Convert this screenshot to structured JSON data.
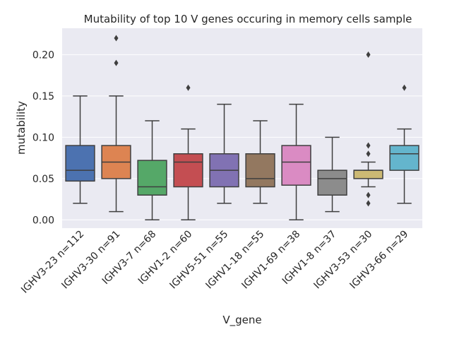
{
  "chart_data": {
    "type": "box",
    "title": "Mutability of top 10 V genes occuring in memory cells sample",
    "xlabel": "V_gene",
    "ylabel": "mutability",
    "ylim": [
      -0.01,
      0.232
    ],
    "yticks": [
      0.0,
      0.05,
      0.1,
      0.15,
      0.2
    ],
    "ytick_labels": [
      "0.00",
      "0.05",
      "0.10",
      "0.15",
      "0.20"
    ],
    "grid": true,
    "background": "#eaeaf2",
    "grid_color": "#ffffff",
    "line_color": "#3f3f3f",
    "categories": [
      "IGHV3-23 n=112",
      "IGHV3-30 n=91",
      "IGHV3-7 n=68",
      "IGHV1-2 n=60",
      "IGHV5-51 n=55",
      "IGHV1-18 n=55",
      "IGHV1-69 n=38",
      "IGHV1-8 n=37",
      "IGHV3-53 n=30",
      "IGHV3-66 n=29"
    ],
    "boxes": [
      {
        "whisker_low": 0.02,
        "q1": 0.047,
        "median": 0.06,
        "q3": 0.09,
        "whisker_high": 0.15,
        "outliers": [],
        "color": "#4c72b0"
      },
      {
        "whisker_low": 0.01,
        "q1": 0.05,
        "median": 0.07,
        "q3": 0.09,
        "whisker_high": 0.15,
        "outliers": [
          0.19,
          0.22
        ],
        "color": "#dd8452"
      },
      {
        "whisker_low": 0.0,
        "q1": 0.03,
        "median": 0.04,
        "q3": 0.072,
        "whisker_high": 0.12,
        "outliers": [],
        "color": "#55a868"
      },
      {
        "whisker_low": 0.0,
        "q1": 0.04,
        "median": 0.07,
        "q3": 0.08,
        "whisker_high": 0.11,
        "outliers": [
          0.16
        ],
        "color": "#c44e52"
      },
      {
        "whisker_low": 0.02,
        "q1": 0.04,
        "median": 0.06,
        "q3": 0.08,
        "whisker_high": 0.14,
        "outliers": [],
        "color": "#8172b3"
      },
      {
        "whisker_low": 0.02,
        "q1": 0.04,
        "median": 0.05,
        "q3": 0.08,
        "whisker_high": 0.12,
        "outliers": [],
        "color": "#937860"
      },
      {
        "whisker_low": 0.0,
        "q1": 0.042,
        "median": 0.07,
        "q3": 0.09,
        "whisker_high": 0.14,
        "outliers": [],
        "color": "#da8bc3"
      },
      {
        "whisker_low": 0.01,
        "q1": 0.03,
        "median": 0.05,
        "q3": 0.06,
        "whisker_high": 0.1,
        "outliers": [],
        "color": "#8c8c8c"
      },
      {
        "whisker_low": 0.04,
        "q1": 0.05,
        "median": 0.06,
        "q3": 0.06,
        "whisker_high": 0.07,
        "outliers": [
          0.02,
          0.03,
          0.08,
          0.09,
          0.2
        ],
        "color": "#ccb974"
      },
      {
        "whisker_low": 0.02,
        "q1": 0.06,
        "median": 0.08,
        "q3": 0.09,
        "whisker_high": 0.11,
        "outliers": [
          0.16
        ],
        "color": "#64b5cd"
      }
    ]
  }
}
